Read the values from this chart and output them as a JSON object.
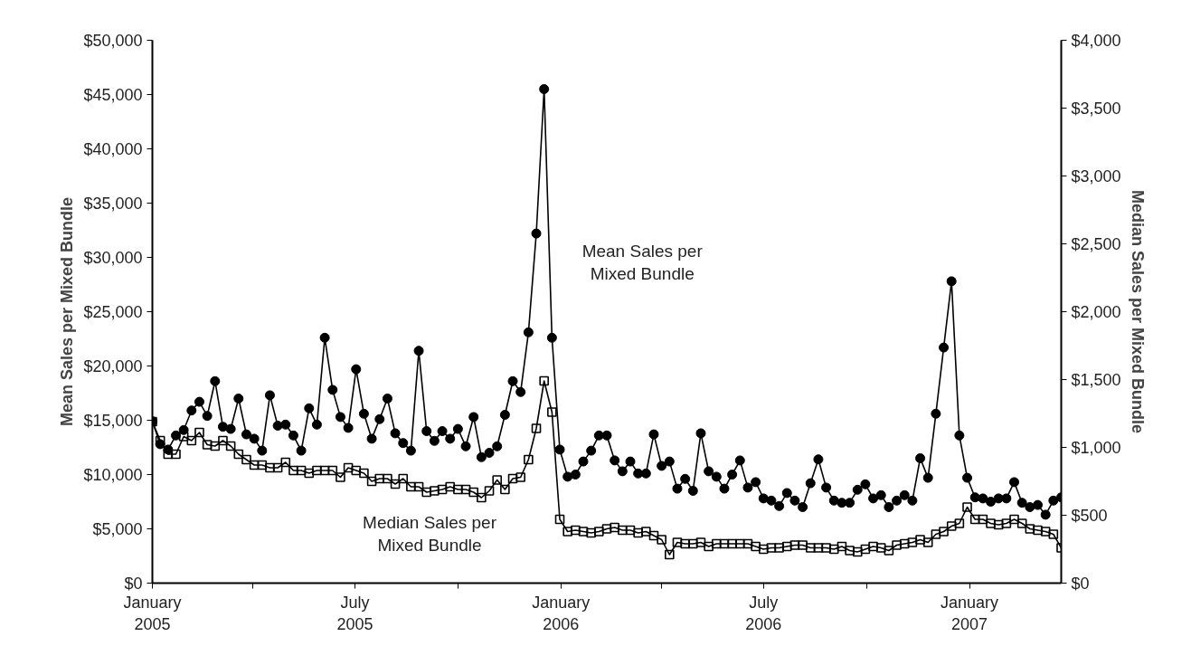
{
  "chart_data": {
    "type": "line",
    "x": [
      "2005-01-01",
      "2005-01-08",
      "2005-01-15",
      "2005-01-22",
      "2005-01-29",
      "2005-02-05",
      "2005-02-12",
      "2005-02-19",
      "2005-02-26",
      "2005-03-05",
      "2005-03-12",
      "2005-03-19",
      "2005-03-26",
      "2005-04-02",
      "2005-04-09",
      "2005-04-16",
      "2005-04-23",
      "2005-04-30",
      "2005-05-07",
      "2005-05-14",
      "2005-05-21",
      "2005-05-28",
      "2005-06-04",
      "2005-06-11",
      "2005-06-18",
      "2005-06-25",
      "2005-07-02",
      "2005-07-09",
      "2005-07-16",
      "2005-07-23",
      "2005-07-30",
      "2005-08-06",
      "2005-08-13",
      "2005-08-20",
      "2005-08-27",
      "2005-09-03",
      "2005-09-10",
      "2005-09-17",
      "2005-09-24",
      "2005-10-01",
      "2005-10-08",
      "2005-10-15",
      "2005-10-22",
      "2005-10-29",
      "2005-11-05",
      "2005-11-12",
      "2005-11-19",
      "2005-11-26",
      "2005-12-03",
      "2005-12-10",
      "2005-12-17",
      "2005-12-24",
      "2005-12-31",
      "2006-01-07",
      "2006-01-14",
      "2006-01-21",
      "2006-01-28",
      "2006-02-04",
      "2006-02-11",
      "2006-02-18",
      "2006-02-25",
      "2006-03-04",
      "2006-03-11",
      "2006-03-18",
      "2006-03-25",
      "2006-04-01",
      "2006-04-08",
      "2006-04-15",
      "2006-04-22",
      "2006-04-29",
      "2006-05-06",
      "2006-05-13",
      "2006-05-20",
      "2006-05-27",
      "2006-06-03",
      "2006-06-10",
      "2006-06-17",
      "2006-06-24",
      "2006-07-01",
      "2006-07-08",
      "2006-07-15",
      "2006-07-22",
      "2006-07-29",
      "2006-08-05",
      "2006-08-12",
      "2006-08-19",
      "2006-08-26",
      "2006-09-02",
      "2006-09-09",
      "2006-09-16",
      "2006-09-23",
      "2006-09-30",
      "2006-10-07",
      "2006-10-14",
      "2006-10-21",
      "2006-10-28",
      "2006-11-04",
      "2006-11-11",
      "2006-11-18",
      "2006-11-25",
      "2006-12-02",
      "2006-12-09",
      "2006-12-16",
      "2006-12-23",
      "2006-12-30",
      "2007-01-06",
      "2007-01-13",
      "2007-01-20",
      "2007-01-27",
      "2007-02-03",
      "2007-02-10",
      "2007-02-17",
      "2007-02-24",
      "2007-03-03",
      "2007-03-10",
      "2007-03-17",
      "2007-03-24"
    ],
    "series": [
      {
        "name": "Mean Sales per Mixed Bundle",
        "color": "#000000",
        "marker": "circle",
        "values": [
          14900,
          12800,
          12300,
          13600,
          14100,
          15900,
          16700,
          15400,
          18600,
          14400,
          14200,
          17000,
          13700,
          13300,
          12200,
          17300,
          14500,
          14600,
          13600,
          12200,
          16100,
          14600,
          22600,
          17800,
          15300,
          14300,
          19700,
          15600,
          13300,
          15100,
          17000,
          13800,
          12900,
          12200,
          21400,
          14000,
          13100,
          14000,
          13300,
          14200,
          12600,
          15300,
          11600,
          12000,
          12600,
          15500,
          18600,
          17600,
          23100,
          32200,
          45500,
          22600,
          12300,
          9800,
          10000,
          11200,
          12200,
          13600,
          13600,
          11300,
          10300,
          11200,
          10100,
          10100,
          13700,
          10800,
          11200,
          8700,
          9600,
          8500,
          13800,
          10300,
          9800,
          8700,
          10000,
          11300,
          8800,
          9300,
          7800,
          7600,
          7100,
          8300,
          7600,
          7000,
          9200,
          11400,
          8800,
          7600,
          7400,
          7400,
          8600,
          9100,
          7800,
          8100,
          7000,
          7600,
          8100,
          7600,
          11500,
          9700,
          15600,
          21700,
          27800,
          13600,
          9700,
          7900,
          7800,
          7500,
          7800,
          7800,
          9300,
          7400,
          7000,
          7200,
          6300,
          7600,
          7900
        ]
      },
      {
        "name": "Median Sales per Mixed Bundle",
        "color": "#000000",
        "marker": "square",
        "axis": "y2",
        "values": [
          1190,
          1050,
          950,
          950,
          1080,
          1050,
          1110,
          1020,
          1010,
          1050,
          1010,
          950,
          910,
          870,
          870,
          850,
          850,
          890,
          830,
          830,
          810,
          830,
          830,
          830,
          780,
          850,
          830,
          810,
          750,
          770,
          770,
          730,
          770,
          710,
          710,
          670,
          680,
          690,
          710,
          690,
          690,
          670,
          630,
          680,
          760,
          690,
          770,
          780,
          910,
          1140,
          1490,
          1260,
          470,
          380,
          390,
          380,
          370,
          380,
          400,
          410,
          390,
          390,
          370,
          380,
          350,
          320,
          210,
          300,
          290,
          290,
          300,
          270,
          290,
          290,
          290,
          290,
          290,
          270,
          250,
          260,
          260,
          270,
          280,
          280,
          260,
          260,
          260,
          250,
          270,
          240,
          230,
          250,
          270,
          260,
          240,
          280,
          290,
          300,
          320,
          300,
          360,
          380,
          420,
          440,
          560,
          470,
          470,
          440,
          430,
          440,
          470,
          440,
          400,
          390,
          380,
          360,
          260
        ]
      }
    ],
    "ylabel": "Mean Sales per Mixed Bundle",
    "y2label": "Median Sales per Mixed Bundle",
    "xlim": [
      "2005-01-01",
      "2007-03-24"
    ],
    "xticks": [
      {
        "value": "2005-01-01",
        "label": "January\n2005"
      },
      {
        "value": "2005-04-01",
        "label": null
      },
      {
        "value": "2005-07-01",
        "label": "July\n2005"
      },
      {
        "value": "2005-10-01",
        "label": null
      },
      {
        "value": "2006-01-01",
        "label": "January\n2006"
      },
      {
        "value": "2006-04-01",
        "label": null
      },
      {
        "value": "2006-07-01",
        "label": "July\n2006"
      },
      {
        "value": "2006-10-01",
        "label": null
      },
      {
        "value": "2007-01-01",
        "label": "January\n2007"
      }
    ],
    "ylim": [
      0,
      50000
    ],
    "yticks": [
      {
        "value": 0,
        "label": "$0"
      },
      {
        "value": 5000,
        "label": "$5,000"
      },
      {
        "value": 10000,
        "label": "$10,000"
      },
      {
        "value": 15000,
        "label": "$15,000"
      },
      {
        "value": 20000,
        "label": "$20,000"
      },
      {
        "value": 25000,
        "label": "$25,000"
      },
      {
        "value": 30000,
        "label": "$30,000"
      },
      {
        "value": 35000,
        "label": "$35,000"
      },
      {
        "value": 40000,
        "label": "$40,000"
      },
      {
        "value": 45000,
        "label": "$45,000"
      },
      {
        "value": 50000,
        "label": "$50,000"
      }
    ],
    "y2lim": [
      0,
      4000
    ],
    "y2ticks": [
      {
        "value": 0,
        "label": "$0"
      },
      {
        "value": 500,
        "label": "$500"
      },
      {
        "value": 1000,
        "label": "$1,000"
      },
      {
        "value": 1500,
        "label": "$1,500"
      },
      {
        "value": 2000,
        "label": "$2,000"
      },
      {
        "value": 2500,
        "label": "$2,500"
      },
      {
        "value": 3000,
        "label": "$3,000"
      },
      {
        "value": 3500,
        "label": "$3,500"
      },
      {
        "value": 4000,
        "label": "$4,000"
      }
    ],
    "grid": false,
    "line_style": "solid"
  }
}
